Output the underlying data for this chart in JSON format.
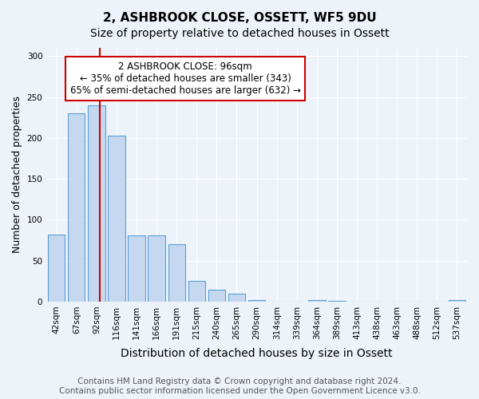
{
  "title": "2, ASHBROOK CLOSE, OSSETT, WF5 9DU",
  "subtitle": "Size of property relative to detached houses in Ossett",
  "xlabel": "Distribution of detached houses by size in Ossett",
  "ylabel": "Number of detached properties",
  "categories": [
    "42sqm",
    "67sqm",
    "92sqm",
    "116sqm",
    "141sqm",
    "166sqm",
    "191sqm",
    "215sqm",
    "240sqm",
    "265sqm",
    "290sqm",
    "314sqm",
    "339sqm",
    "364sqm",
    "389sqm",
    "413sqm",
    "438sqm",
    "463sqm",
    "488sqm",
    "512sqm",
    "537sqm"
  ],
  "values": [
    82,
    230,
    240,
    203,
    81,
    81,
    70,
    25,
    15,
    10,
    2,
    0,
    0,
    2,
    1,
    0,
    0,
    0,
    0,
    0,
    2
  ],
  "bar_color": "#c5d8f0",
  "bar_edge_color": "#5a9fd4",
  "reference_line_x": 2.18,
  "annotation_text": "2 ASHBROOK CLOSE: 96sqm\n← 35% of detached houses are smaller (343)\n65% of semi-detached houses are larger (632) →",
  "annotation_box_color": "#ffffff",
  "annotation_box_edge_color": "#cc0000",
  "ylim": [
    0,
    310
  ],
  "yticks": [
    0,
    50,
    100,
    150,
    200,
    250,
    300
  ],
  "background_color": "#eef3fa",
  "plot_bg_color": "#eef3fa",
  "footer_line1": "Contains HM Land Registry data © Crown copyright and database right 2024.",
  "footer_line2": "Contains public sector information licensed under the Open Government Licence v3.0.",
  "title_fontsize": 11,
  "subtitle_fontsize": 10,
  "xlabel_fontsize": 10,
  "ylabel_fontsize": 9,
  "tick_fontsize": 7.5,
  "annotation_fontsize": 8.5,
  "footer_fontsize": 7.5
}
